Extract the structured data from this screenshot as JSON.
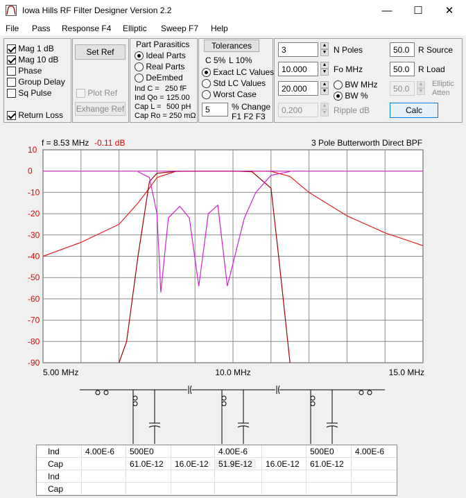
{
  "window": {
    "title": "Iowa Hills RF Filter Designer  Version 2.2",
    "min": "—",
    "max": "☐",
    "close": "✕"
  },
  "menu": [
    "File",
    "Pass",
    "Response F4",
    "Elliptic",
    "Sweep F7",
    "Help"
  ],
  "display": {
    "mag1": {
      "label": "Mag   1 dB",
      "checked": true
    },
    "mag10": {
      "label": "Mag 10 dB",
      "checked": true
    },
    "phase": {
      "label": "Phase",
      "checked": false
    },
    "group_delay": {
      "label": "Group Delay",
      "checked": false
    },
    "sq_pulse": {
      "label": "Sq Pulse",
      "checked": false
    },
    "return_loss": {
      "label": "Return Loss",
      "checked": true
    }
  },
  "ref": {
    "set_ref": "Set Ref",
    "plot_ref": "Plot Ref",
    "exchange_ref": "Exhange Ref"
  },
  "parasitics": {
    "title": "Part Parasitics",
    "ideal": "Ideal Parts",
    "real": "Real Parts",
    "deembed": "DeEmbed",
    "ind_c_label": "Ind C  =",
    "ind_c_value": "250  fF",
    "ind_qo_label": "Ind Qo =",
    "ind_qo_value": "125.00",
    "cap_l_label": "Cap L  =",
    "cap_l_value": "500 pH",
    "cap_ro_label": "Cap Ro = 250 mΩ"
  },
  "tolerances": {
    "button": "Tolerances",
    "c_tol": "C 5%",
    "l_tol": "L 10%",
    "exact": "Exact LC Values",
    "std": "Std LC Values",
    "worst": "Worst Case",
    "pct_value": "5",
    "pct_label": "% Change",
    "fkeys": "F1 F2 F3"
  },
  "params": {
    "n_poles": "3",
    "n_poles_label": "N Poles",
    "fo": "10.000",
    "fo_label": "Fo  MHz",
    "bw": "20.000",
    "bw_mhz": "BW MHz",
    "bw_pct": "BW %",
    "ripple": "0.200",
    "ripple_label": "Ripple  dB",
    "r_source": "50.0",
    "r_source_label": "R Source",
    "r_load": "50.0",
    "r_load_label": "R Load",
    "elliptic": "50.0",
    "elliptic_label1": "Elliptic",
    "elliptic_label2": "Atten",
    "calc": "Calc"
  },
  "plot": {
    "readout_f": "f = 8.53 MHz",
    "readout_db": "-0.11 dB",
    "title": "3 Pole Butterworth Direct BPF",
    "y_ticks": [
      "10",
      "0",
      "-10",
      "-20",
      "-30",
      "-40",
      "-50",
      "-60",
      "-70",
      "-80",
      "-90"
    ],
    "x_ticks": [
      "5.00 MHz",
      "10.0 MHz",
      "15.0 MHz"
    ],
    "colors": {
      "mag1": "#a00000",
      "mag10": "#e02020",
      "return_loss": "#d020d0",
      "grid": "#888888",
      "bg": "#ffffff",
      "axis_label_red": "#e00000"
    }
  },
  "chart_data": {
    "type": "line",
    "title": "3 Pole Butterworth Direct BPF",
    "xlabel": "",
    "ylabel": "",
    "xlim": [
      5.0,
      15.0
    ],
    "ylim": [
      -90,
      10
    ],
    "grid": true,
    "series": [
      {
        "name": "",
        "x": [
          5.0,
          6.0,
          7.0,
          7.5,
          7.8,
          8.0,
          8.5,
          9.0,
          10.0,
          11.0,
          11.5,
          12.0,
          13.0,
          14.0,
          15.0
        ],
        "y": [
          -40.0,
          -33.5,
          -25.0,
          -15.0,
          -8.0,
          -3.0,
          -0.1,
          0.0,
          0.0,
          -0.1,
          -2.5,
          -10.0,
          -21.0,
          -29.0,
          -35.0
        ]
      },
      {
        "name": "",
        "x": [
          7.0,
          7.2,
          7.5,
          7.8,
          8.0,
          8.5,
          9.0,
          10.0,
          10.5,
          11.0,
          11.2,
          11.5
        ],
        "y": [
          -90.0,
          -80.0,
          -40.0,
          -5.0,
          -1.0,
          -0.1,
          -0.05,
          0.0,
          -0.3,
          -8.0,
          -40.0,
          -90.0
        ]
      },
      {
        "name": "",
        "x": [
          7.5,
          7.8,
          8.0,
          8.1,
          8.3,
          8.6,
          8.85,
          9.1,
          9.35,
          9.6,
          9.85,
          10.3,
          10.6,
          11.0,
          11.5
        ],
        "y": [
          -0.3,
          -3.0,
          -20.0,
          -57.0,
          -22.0,
          -16.5,
          -22.0,
          -54.0,
          -20.0,
          -16.0,
          -54.0,
          -22.0,
          -10.0,
          -2.0,
          -0.2
        ]
      }
    ]
  },
  "grid_table": {
    "rows": [
      {
        "label": "Ind",
        "cells": [
          "4.00E-6",
          "500E0",
          "",
          "4.00E-6",
          "",
          "500E0",
          "4.00E-6"
        ]
      },
      {
        "label": "Cap",
        "cells": [
          "",
          "61.0E-12",
          "16.0E-12",
          "51.9E-12",
          "16.0E-12",
          "61.0E-12",
          ""
        ]
      },
      {
        "label": "Ind",
        "cells": [
          "",
          "",
          "",
          "",
          "",
          "",
          ""
        ]
      },
      {
        "label": "Cap",
        "cells": [
          "",
          "",
          "",
          "",
          "",
          "",
          ""
        ]
      }
    ]
  }
}
